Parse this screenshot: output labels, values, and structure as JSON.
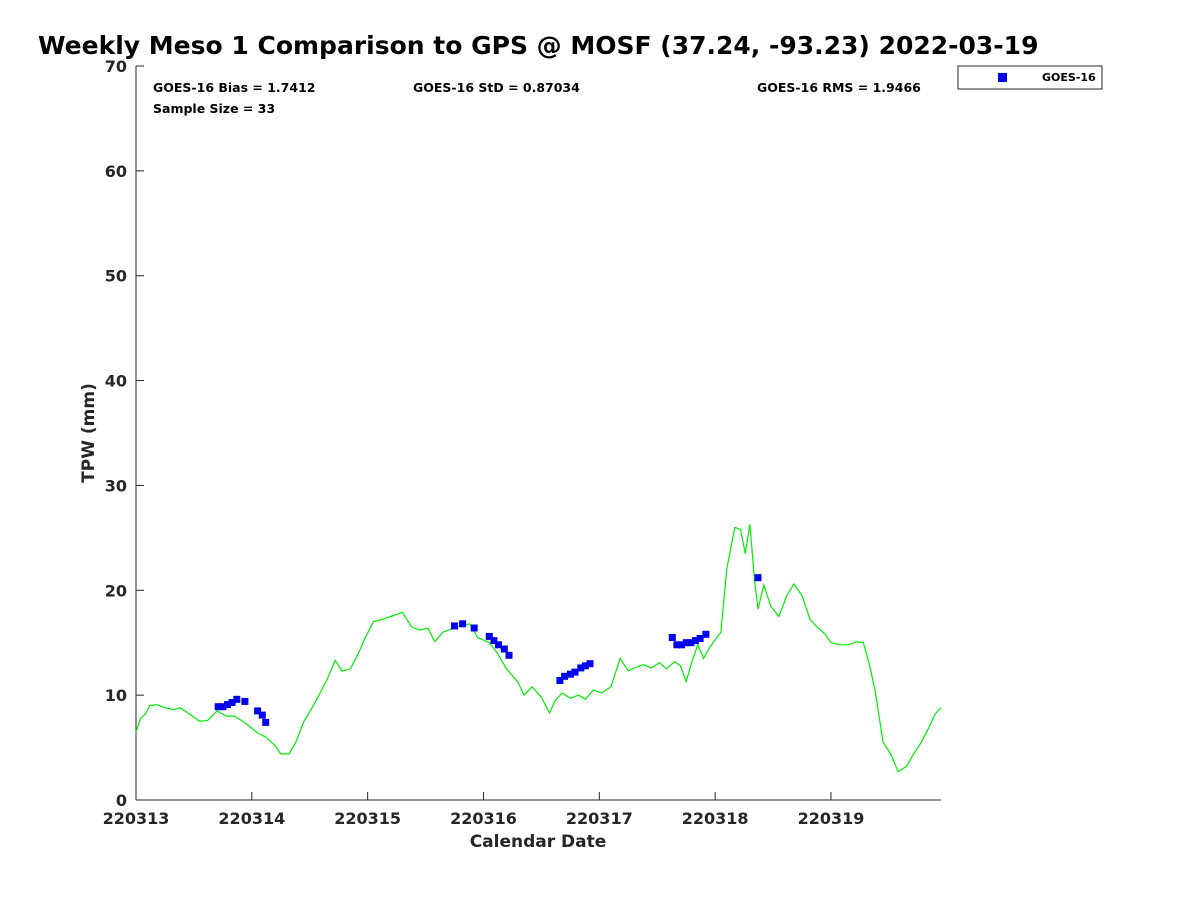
{
  "chart_data": {
    "type": "line",
    "title": "Weekly Meso 1 Comparison to GPS @ MOSF (37.24, -93.23) 2022-03-19",
    "xlabel": "Calendar Date",
    "ylabel": "TPW (mm)",
    "xlim": [
      220313.0,
      220319.95
    ],
    "ylim": [
      0,
      70
    ],
    "x_ticks": [
      220313,
      220314,
      220315,
      220316,
      220317,
      220318,
      220319
    ],
    "x_tick_labels": [
      "220313",
      "220314",
      "220315",
      "220316",
      "220317",
      "220318",
      "220319"
    ],
    "y_ticks": [
      0,
      10,
      20,
      30,
      40,
      50,
      60,
      70
    ],
    "y_tick_labels": [
      "0",
      "10",
      "20",
      "30",
      "40",
      "50",
      "60",
      "70"
    ],
    "grid": false,
    "legend_position": "top-right, outside plot",
    "legend": [
      "GOES-16"
    ],
    "stats": {
      "bias": "GOES-16 Bias = 1.7412",
      "std": "GOES-16 StD = 0.87034",
      "rms": "GOES-16 RMS = 1.9466",
      "sample": "Sample Size = 33"
    },
    "series": [
      {
        "name": "",
        "kind": "line",
        "color": "#00ee00",
        "points": [
          [
            220313.0,
            6.5
          ],
          [
            220313.04,
            7.8
          ],
          [
            220313.08,
            8.2
          ],
          [
            220313.12,
            9.0
          ],
          [
            220313.18,
            9.1
          ],
          [
            220313.25,
            8.8
          ],
          [
            220313.32,
            8.6
          ],
          [
            220313.38,
            8.8
          ],
          [
            220313.45,
            8.3
          ],
          [
            220313.55,
            7.5
          ],
          [
            220313.62,
            7.6
          ],
          [
            220313.7,
            8.5
          ],
          [
            220313.78,
            8.0
          ],
          [
            220313.85,
            8.0
          ],
          [
            220313.95,
            7.3
          ],
          [
            220314.05,
            6.4
          ],
          [
            220314.12,
            6.0
          ],
          [
            220314.2,
            5.2
          ],
          [
            220314.25,
            4.4
          ],
          [
            220314.32,
            4.4
          ],
          [
            220314.38,
            5.5
          ],
          [
            220314.45,
            7.5
          ],
          [
            220314.52,
            8.8
          ],
          [
            220314.58,
            10.0
          ],
          [
            220314.65,
            11.5
          ],
          [
            220314.72,
            13.3
          ],
          [
            220314.78,
            12.3
          ],
          [
            220314.85,
            12.5
          ],
          [
            220314.92,
            14.0
          ],
          [
            220314.98,
            15.5
          ],
          [
            220315.05,
            17.0
          ],
          [
            220315.12,
            17.2
          ],
          [
            220315.2,
            17.5
          ],
          [
            220315.3,
            17.9
          ],
          [
            220315.38,
            16.5
          ],
          [
            220315.45,
            16.2
          ],
          [
            220315.52,
            16.4
          ],
          [
            220315.58,
            15.1
          ],
          [
            220315.65,
            16.0
          ],
          [
            220315.72,
            16.3
          ],
          [
            220315.8,
            16.6
          ],
          [
            220315.88,
            16.8
          ],
          [
            220315.95,
            15.5
          ],
          [
            220316.05,
            15.0
          ],
          [
            220316.12,
            14.0
          ],
          [
            220316.2,
            12.5
          ],
          [
            220316.3,
            11.2
          ],
          [
            220316.35,
            10.0
          ],
          [
            220316.42,
            10.8
          ],
          [
            220316.5,
            9.8
          ],
          [
            220316.57,
            8.3
          ],
          [
            220316.62,
            9.5
          ],
          [
            220316.68,
            10.2
          ],
          [
            220316.75,
            9.7
          ],
          [
            220316.82,
            10.0
          ],
          [
            220316.88,
            9.6
          ],
          [
            220316.95,
            10.5
          ],
          [
            220317.02,
            10.2
          ],
          [
            220317.1,
            10.8
          ],
          [
            220317.18,
            13.5
          ],
          [
            220317.25,
            12.3
          ],
          [
            220317.3,
            12.6
          ],
          [
            220317.38,
            12.9
          ],
          [
            220317.45,
            12.6
          ],
          [
            220317.52,
            13.1
          ],
          [
            220317.58,
            12.5
          ],
          [
            220317.65,
            13.2
          ],
          [
            220317.7,
            12.8
          ],
          [
            220317.75,
            11.3
          ],
          [
            220317.8,
            13.2
          ],
          [
            220317.85,
            14.8
          ],
          [
            220317.9,
            13.5
          ],
          [
            220317.95,
            14.5
          ],
          [
            220318.05,
            16.0
          ],
          [
            220318.1,
            22.0
          ],
          [
            220318.17,
            26.0
          ],
          [
            220318.22,
            25.8
          ],
          [
            220318.26,
            23.5
          ],
          [
            220318.3,
            26.3
          ],
          [
            220318.34,
            21.0
          ],
          [
            220318.37,
            18.2
          ],
          [
            220318.42,
            20.5
          ],
          [
            220318.48,
            18.5
          ],
          [
            220318.55,
            17.5
          ],
          [
            220318.62,
            19.5
          ],
          [
            220318.68,
            20.6
          ],
          [
            220318.75,
            19.5
          ],
          [
            220318.82,
            17.2
          ],
          [
            220318.88,
            16.5
          ],
          [
            220318.95,
            15.8
          ],
          [
            220319.0,
            15.0
          ],
          [
            220319.08,
            14.8
          ],
          [
            220319.15,
            14.8
          ],
          [
            220319.22,
            15.1
          ],
          [
            220319.28,
            15.0
          ],
          [
            220319.33,
            13.0
          ],
          [
            220319.38,
            10.5
          ],
          [
            220319.45,
            5.5
          ],
          [
            220319.52,
            4.3
          ],
          [
            220319.58,
            2.7
          ],
          [
            220319.65,
            3.2
          ],
          [
            220319.72,
            4.5
          ],
          [
            220319.78,
            5.5
          ],
          [
            220319.84,
            6.8
          ],
          [
            220319.9,
            8.2
          ],
          [
            220319.95,
            8.8
          ]
        ]
      },
      {
        "name": "GOES-16",
        "kind": "scatter",
        "marker": "square",
        "color": "#0000ee",
        "points": [
          [
            220313.71,
            8.9
          ],
          [
            220313.75,
            8.9
          ],
          [
            220313.79,
            9.1
          ],
          [
            220313.83,
            9.3
          ],
          [
            220313.87,
            9.6
          ],
          [
            220313.94,
            9.4
          ],
          [
            220314.05,
            8.5
          ],
          [
            220314.09,
            8.1
          ],
          [
            220314.12,
            7.4
          ],
          [
            220315.75,
            16.6
          ],
          [
            220315.82,
            16.8
          ],
          [
            220315.92,
            16.4
          ],
          [
            220316.05,
            15.6
          ],
          [
            220316.09,
            15.2
          ],
          [
            220316.13,
            14.8
          ],
          [
            220316.18,
            14.4
          ],
          [
            220316.22,
            13.8
          ],
          [
            220316.66,
            11.4
          ],
          [
            220316.7,
            11.8
          ],
          [
            220316.75,
            12.0
          ],
          [
            220316.79,
            12.2
          ],
          [
            220316.84,
            12.6
          ],
          [
            220316.88,
            12.8
          ],
          [
            220316.92,
            13.0
          ],
          [
            220317.63,
            15.5
          ],
          [
            220317.67,
            14.8
          ],
          [
            220317.71,
            14.8
          ],
          [
            220317.75,
            15.0
          ],
          [
            220317.79,
            15.0
          ],
          [
            220317.83,
            15.2
          ],
          [
            220317.87,
            15.4
          ],
          [
            220317.92,
            15.8
          ],
          [
            220318.37,
            21.2
          ]
        ]
      }
    ]
  }
}
